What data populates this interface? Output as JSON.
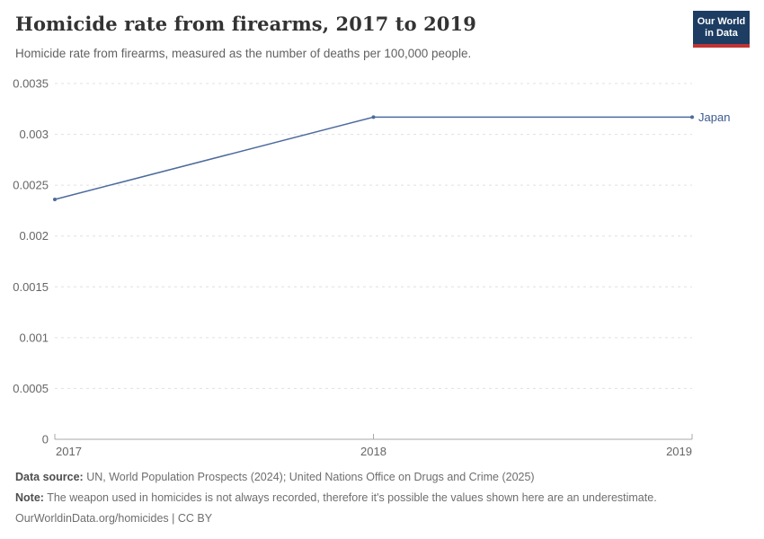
{
  "header": {
    "title": "Homicide rate from firearms, 2017 to 2019",
    "subtitle": "Homicide rate from firearms, measured as the number of deaths per 100,000 people.",
    "logo": {
      "line1": "Our World",
      "line2": "in Data",
      "bg_color": "#1d3d63",
      "bar_color": "#bf3434"
    }
  },
  "chart_data": {
    "type": "line",
    "title": "Homicide rate from firearms, 2017 to 2019",
    "xlabel": "",
    "ylabel": "",
    "xlim": [
      2017,
      2019
    ],
    "ylim": [
      0,
      0.0035
    ],
    "grid": "horizontal dashed",
    "legend_position": "end-of-line label",
    "x_ticks": {
      "values": [
        2017,
        2018,
        2019
      ],
      "labels": [
        "2017",
        "2018",
        "2019"
      ]
    },
    "y_ticks": {
      "values": [
        0,
        0.0005,
        0.001,
        0.0015,
        0.002,
        0.0025,
        0.003,
        0.0035
      ],
      "labels": [
        "0",
        "0.0005",
        "0.001",
        "0.0015",
        "0.002",
        "0.0025",
        "0.003",
        "0.0035"
      ]
    },
    "series": [
      {
        "name": "Japan",
        "color": "#4c6a9c",
        "label_color": "#3d5a8f",
        "x": [
          2017,
          2018,
          2019
        ],
        "values": [
          0.00236,
          0.00317,
          0.00317
        ]
      }
    ],
    "grid_color": "#e0e0e0",
    "axis_color": "#a8a8a8",
    "tick_label_color": "#666666"
  },
  "footer": {
    "data_source_label": "Data source:",
    "data_source_text": " UN, World Population Prospects (2024); United Nations Office on Drugs and Crime (2025)",
    "note_label": "Note:",
    "note_text": " The weapon used in homicides is not always recorded, therefore it's possible the values shown here are an underestimate.",
    "link": "OurWorldinData.org/homicides",
    "separator": " | ",
    "license": "CC BY"
  }
}
